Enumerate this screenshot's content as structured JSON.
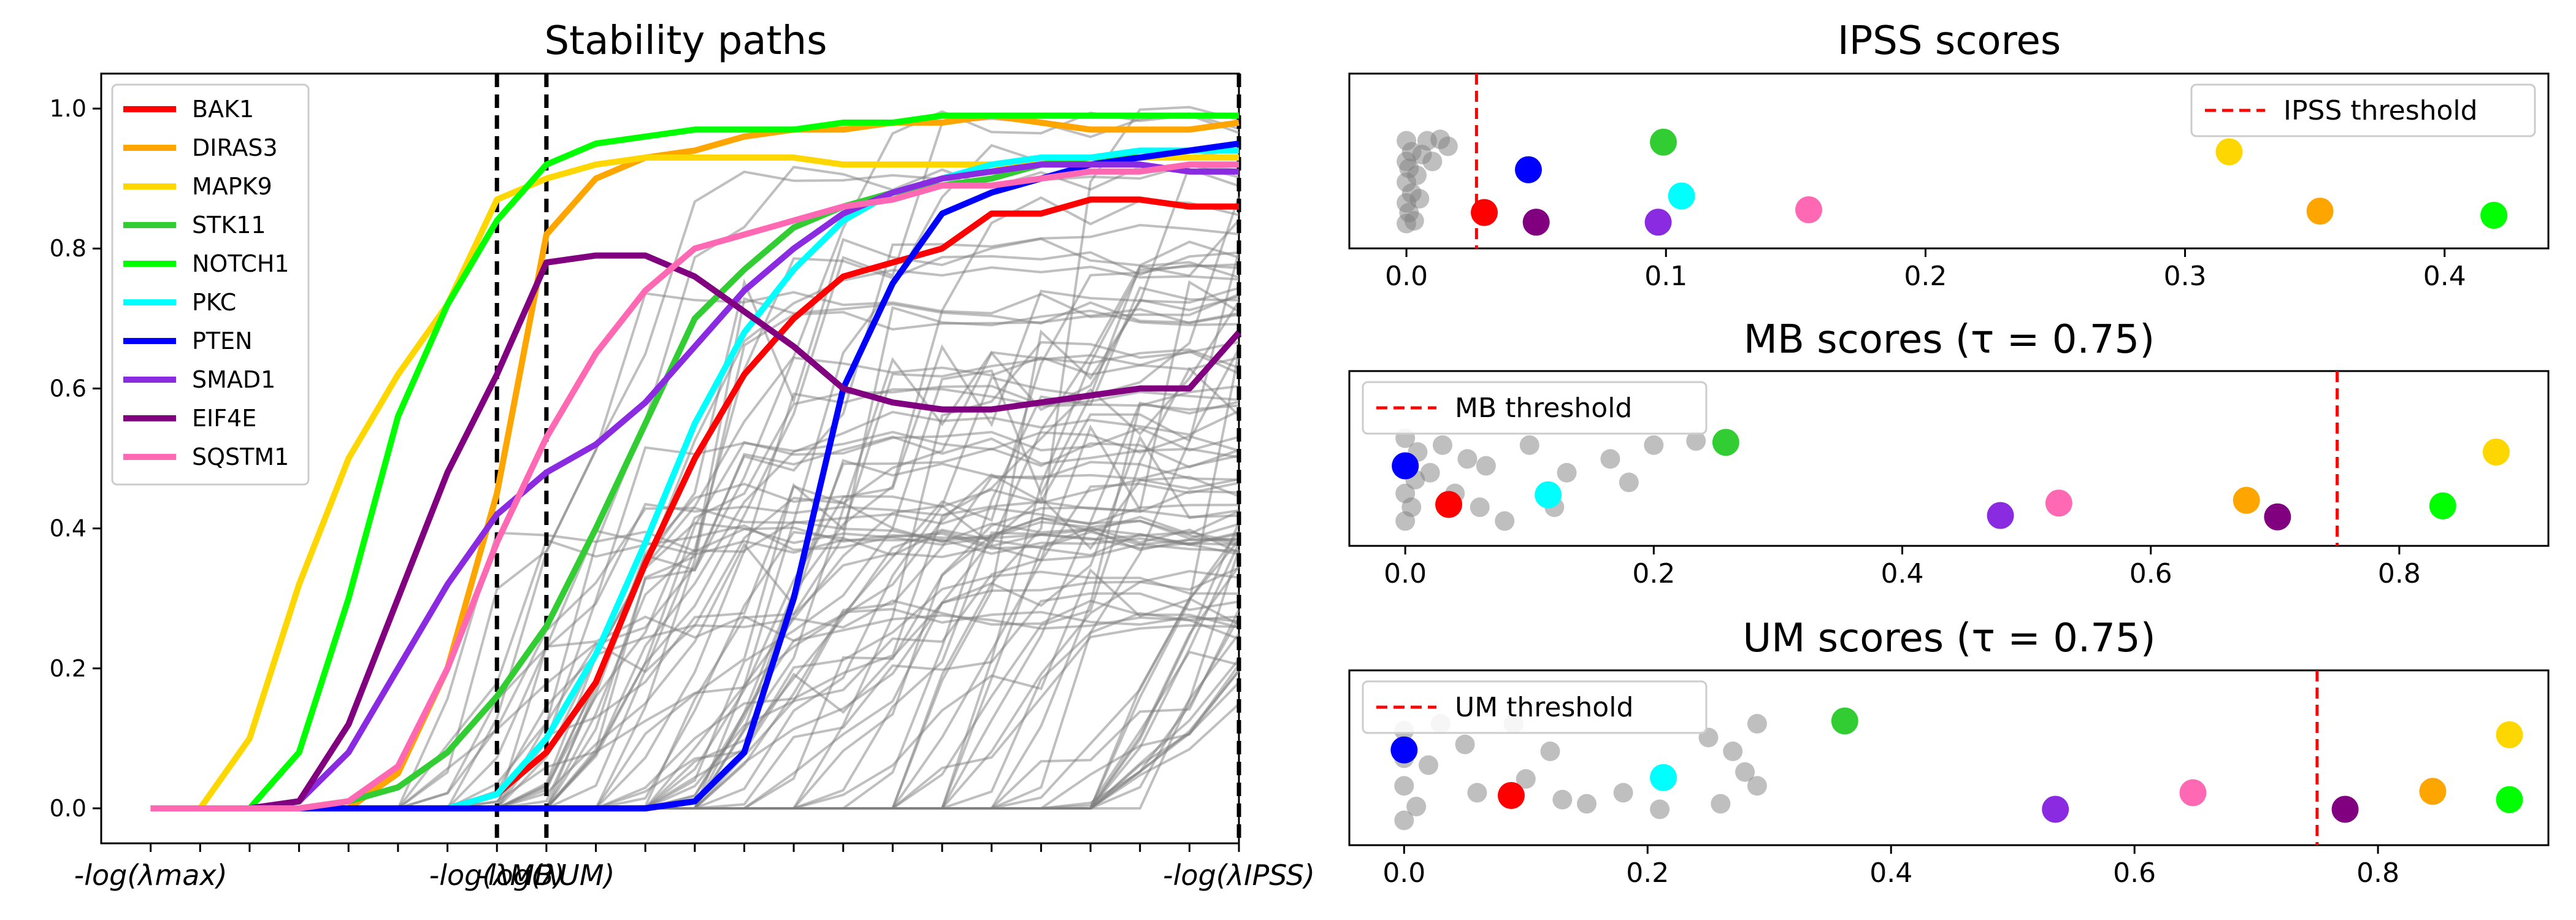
{
  "chart_data": [
    {
      "type": "line",
      "title": "Stability paths",
      "xlabel": "",
      "ylabel": "",
      "ylim": [
        -0.05,
        1.05
      ],
      "yticks": [
        0.0,
        0.2,
        0.4,
        0.6,
        0.8,
        1.0
      ],
      "ytick_labels": [
        "0.0",
        "0.2",
        "0.4",
        "0.6",
        "0.8",
        "1.0"
      ],
      "xlim": [
        -1,
        22
      ],
      "xtick_labels": [
        "-log(λmax)",
        "-log(λMB)",
        "-log(λUM)",
        "-log(λIPSS)"
      ],
      "xtick_positions": [
        0,
        7,
        8,
        22
      ],
      "vlines": [
        7,
        8,
        22
      ],
      "x": [
        0,
        1,
        2,
        3,
        4,
        5,
        6,
        7,
        8,
        9,
        10,
        11,
        12,
        13,
        14,
        15,
        16,
        17,
        18,
        19,
        20,
        21,
        22
      ],
      "series": [
        {
          "name": "BAK1",
          "color": "#ff0000",
          "values": [
            0,
            0,
            0,
            0,
            0,
            0,
            0,
            0.02,
            0.08,
            0.18,
            0.35,
            0.5,
            0.62,
            0.7,
            0.76,
            0.78,
            0.8,
            0.85,
            0.85,
            0.87,
            0.87,
            0.86,
            0.86
          ]
        },
        {
          "name": "DIRAS3",
          "color": "#ffa500",
          "values": [
            0,
            0,
            0,
            0,
            0,
            0.05,
            0.2,
            0.45,
            0.82,
            0.9,
            0.93,
            0.94,
            0.96,
            0.97,
            0.97,
            0.98,
            0.98,
            0.99,
            0.98,
            0.97,
            0.97,
            0.97,
            0.98
          ]
        },
        {
          "name": "MAPK9",
          "color": "#ffd700",
          "values": [
            0,
            0,
            0.1,
            0.32,
            0.5,
            0.62,
            0.72,
            0.87,
            0.9,
            0.92,
            0.93,
            0.93,
            0.93,
            0.93,
            0.92,
            0.92,
            0.92,
            0.92,
            0.92,
            0.93,
            0.93,
            0.93,
            0.93
          ]
        },
        {
          "name": "STK11",
          "color": "#32cd32",
          "values": [
            0,
            0,
            0,
            0,
            0.01,
            0.03,
            0.08,
            0.16,
            0.26,
            0.4,
            0.55,
            0.7,
            0.77,
            0.83,
            0.86,
            0.88,
            0.89,
            0.9,
            0.92,
            0.93,
            0.93,
            0.94,
            0.94
          ]
        },
        {
          "name": "NOTCH1",
          "color": "#00ff00",
          "values": [
            0,
            0,
            0,
            0.08,
            0.3,
            0.56,
            0.72,
            0.84,
            0.92,
            0.95,
            0.96,
            0.97,
            0.97,
            0.97,
            0.98,
            0.98,
            0.99,
            0.99,
            0.99,
            0.99,
            0.99,
            0.99,
            0.99
          ]
        },
        {
          "name": "PKC",
          "color": "#00ffff",
          "values": [
            0,
            0,
            0,
            0,
            0,
            0,
            0,
            0.02,
            0.1,
            0.22,
            0.38,
            0.55,
            0.68,
            0.77,
            0.84,
            0.88,
            0.9,
            0.92,
            0.93,
            0.93,
            0.94,
            0.94,
            0.94
          ]
        },
        {
          "name": "PTEN",
          "color": "#0000ff",
          "values": [
            0,
            0,
            0,
            0,
            0,
            0,
            0,
            0,
            0,
            0,
            0,
            0.01,
            0.08,
            0.3,
            0.6,
            0.75,
            0.85,
            0.88,
            0.9,
            0.92,
            0.93,
            0.94,
            0.95
          ]
        },
        {
          "name": "SMAD1",
          "color": "#8a2be2",
          "values": [
            0,
            0,
            0,
            0.01,
            0.08,
            0.2,
            0.32,
            0.42,
            0.48,
            0.52,
            0.58,
            0.66,
            0.74,
            0.8,
            0.85,
            0.88,
            0.9,
            0.91,
            0.92,
            0.92,
            0.92,
            0.91,
            0.91
          ]
        },
        {
          "name": "EIF4E",
          "color": "#800080",
          "values": [
            0,
            0,
            0,
            0.01,
            0.12,
            0.3,
            0.48,
            0.62,
            0.78,
            0.79,
            0.79,
            0.76,
            0.71,
            0.66,
            0.6,
            0.58,
            0.57,
            0.57,
            0.58,
            0.59,
            0.6,
            0.6,
            0.68
          ]
        },
        {
          "name": "SQSTM1",
          "color": "#ff69b4",
          "values": [
            0,
            0,
            0,
            0,
            0.01,
            0.06,
            0.2,
            0.38,
            0.53,
            0.65,
            0.74,
            0.8,
            0.82,
            0.84,
            0.86,
            0.87,
            0.89,
            0.89,
            0.9,
            0.91,
            0.91,
            0.92,
            0.92
          ]
        }
      ],
      "background_series_color": "#808080",
      "legend_position": "top-left"
    },
    {
      "type": "scatter",
      "title": "IPSS scores",
      "threshold_label": "IPSS threshold",
      "threshold": 0.027,
      "threshold_color": "#ff0000",
      "xlim": [
        -0.022,
        0.44
      ],
      "xticks": [
        0.0,
        0.1,
        0.2,
        0.3,
        0.4
      ],
      "xtick_labels": [
        "0.0",
        "0.1",
        "0.2",
        "0.3",
        "0.4"
      ],
      "legend_position": "top-right",
      "points": [
        {
          "name": "BAK1",
          "color": "#ff0000",
          "x": 0.03,
          "y": 0.18
        },
        {
          "name": "DIRAS3",
          "color": "#ffa500",
          "x": 0.352,
          "y": 0.19
        },
        {
          "name": "MAPK9",
          "color": "#ffd700",
          "x": 0.317,
          "y": 0.62
        },
        {
          "name": "STK11",
          "color": "#32cd32",
          "x": 0.099,
          "y": 0.69
        },
        {
          "name": "NOTCH1",
          "color": "#00ff00",
          "x": 0.419,
          "y": 0.16
        },
        {
          "name": "PKC",
          "color": "#00ffff",
          "x": 0.106,
          "y": 0.3
        },
        {
          "name": "PTEN",
          "color": "#0000ff",
          "x": 0.047,
          "y": 0.49
        },
        {
          "name": "SMAD1",
          "color": "#8a2be2",
          "x": 0.097,
          "y": 0.11
        },
        {
          "name": "EIF4E",
          "color": "#800080",
          "x": 0.05,
          "y": 0.11
        },
        {
          "name": "SQSTM1",
          "color": "#ff69b4",
          "x": 0.155,
          "y": 0.2
        }
      ],
      "background_points": [
        {
          "x": 0.0,
          "y": 0.1
        },
        {
          "x": 0.0,
          "y": 0.25
        },
        {
          "x": 0.0,
          "y": 0.4
        },
        {
          "x": 0.0,
          "y": 0.55
        },
        {
          "x": 0.0,
          "y": 0.7
        },
        {
          "x": 0.001,
          "y": 0.18
        },
        {
          "x": 0.001,
          "y": 0.5
        },
        {
          "x": 0.002,
          "y": 0.32
        },
        {
          "x": 0.002,
          "y": 0.62
        },
        {
          "x": 0.003,
          "y": 0.12
        },
        {
          "x": 0.004,
          "y": 0.45
        },
        {
          "x": 0.005,
          "y": 0.28
        },
        {
          "x": 0.006,
          "y": 0.6
        },
        {
          "x": 0.008,
          "y": 0.7
        },
        {
          "x": 0.01,
          "y": 0.55
        },
        {
          "x": 0.013,
          "y": 0.71
        },
        {
          "x": 0.016,
          "y": 0.66
        }
      ]
    },
    {
      "type": "scatter",
      "title": "MB scores (τ = 0.75)",
      "threshold_label": "MB threshold",
      "threshold": 0.75,
      "threshold_color": "#ff0000",
      "xlim": [
        -0.045,
        0.92
      ],
      "xticks": [
        0.0,
        0.2,
        0.4,
        0.6,
        0.8
      ],
      "xtick_labels": [
        "0.0",
        "0.2",
        "0.4",
        "0.6",
        "0.8"
      ],
      "legend_position": "top-left",
      "points": [
        {
          "name": "BAK1",
          "color": "#ff0000",
          "x": 0.035,
          "y": 0.22
        },
        {
          "name": "DIRAS3",
          "color": "#ffa500",
          "x": 0.677,
          "y": 0.25
        },
        {
          "name": "MAPK9",
          "color": "#ffd700",
          "x": 0.878,
          "y": 0.6
        },
        {
          "name": "STK11",
          "color": "#32cd32",
          "x": 0.258,
          "y": 0.67
        },
        {
          "name": "NOTCH1",
          "color": "#00ff00",
          "x": 0.835,
          "y": 0.21
        },
        {
          "name": "PKC",
          "color": "#00ffff",
          "x": 0.115,
          "y": 0.29
        },
        {
          "name": "PTEN",
          "color": "#0000ff",
          "x": 0.0,
          "y": 0.5
        },
        {
          "name": "SMAD1",
          "color": "#8a2be2",
          "x": 0.479,
          "y": 0.14
        },
        {
          "name": "EIF4E",
          "color": "#800080",
          "x": 0.702,
          "y": 0.13
        },
        {
          "name": "SQSTM1",
          "color": "#ff69b4",
          "x": 0.526,
          "y": 0.23
        }
      ],
      "background_points": [
        {
          "x": 0.0,
          "y": 0.1
        },
        {
          "x": 0.0,
          "y": 0.3
        },
        {
          "x": 0.0,
          "y": 0.7
        },
        {
          "x": 0.005,
          "y": 0.2
        },
        {
          "x": 0.008,
          "y": 0.4
        },
        {
          "x": 0.01,
          "y": 0.6
        },
        {
          "x": 0.02,
          "y": 0.45
        },
        {
          "x": 0.03,
          "y": 0.65
        },
        {
          "x": 0.04,
          "y": 0.3
        },
        {
          "x": 0.05,
          "y": 0.55
        },
        {
          "x": 0.06,
          "y": 0.2
        },
        {
          "x": 0.065,
          "y": 0.5
        },
        {
          "x": 0.08,
          "y": 0.1
        },
        {
          "x": 0.1,
          "y": 0.65
        },
        {
          "x": 0.12,
          "y": 0.2
        },
        {
          "x": 0.13,
          "y": 0.45
        },
        {
          "x": 0.165,
          "y": 0.55
        },
        {
          "x": 0.18,
          "y": 0.38
        },
        {
          "x": 0.2,
          "y": 0.65
        },
        {
          "x": 0.234,
          "y": 0.68
        }
      ]
    },
    {
      "type": "scatter",
      "title": "UM scores (τ = 0.75)",
      "threshold_label": "UM threshold",
      "threshold": 0.75,
      "threshold_color": "#ff0000",
      "xlim": [
        -0.045,
        0.94
      ],
      "xticks": [
        0.0,
        0.2,
        0.4,
        0.6,
        0.8
      ],
      "xtick_labels": [
        "0.0",
        "0.2",
        "0.4",
        "0.6",
        "0.8"
      ],
      "legend_position": "top-left",
      "points": [
        {
          "name": "BAK1",
          "color": "#ff0000",
          "x": 0.088,
          "y": 0.28
        },
        {
          "name": "DIRAS3",
          "color": "#ffa500",
          "x": 0.845,
          "y": 0.31
        },
        {
          "name": "MAPK9",
          "color": "#ffd700",
          "x": 0.908,
          "y": 0.72
        },
        {
          "name": "STK11",
          "color": "#32cd32",
          "x": 0.362,
          "y": 0.82
        },
        {
          "name": "NOTCH1",
          "color": "#00ff00",
          "x": 0.908,
          "y": 0.25
        },
        {
          "name": "PKC",
          "color": "#00ffff",
          "x": 0.213,
          "y": 0.41
        },
        {
          "name": "PTEN",
          "color": "#0000ff",
          "x": 0.0,
          "y": 0.61
        },
        {
          "name": "SMAD1",
          "color": "#8a2be2",
          "x": 0.535,
          "y": 0.18
        },
        {
          "name": "EIF4E",
          "color": "#800080",
          "x": 0.773,
          "y": 0.18
        },
        {
          "name": "SQSTM1",
          "color": "#ff69b4",
          "x": 0.648,
          "y": 0.3
        }
      ],
      "background_points": [
        {
          "x": 0.0,
          "y": 0.1
        },
        {
          "x": 0.0,
          "y": 0.35
        },
        {
          "x": 0.0,
          "y": 0.55
        },
        {
          "x": 0.0,
          "y": 0.75
        },
        {
          "x": 0.01,
          "y": 0.2
        },
        {
          "x": 0.02,
          "y": 0.5
        },
        {
          "x": 0.03,
          "y": 0.8
        },
        {
          "x": 0.05,
          "y": 0.65
        },
        {
          "x": 0.06,
          "y": 0.3
        },
        {
          "x": 0.09,
          "y": 0.8
        },
        {
          "x": 0.1,
          "y": 0.4
        },
        {
          "x": 0.12,
          "y": 0.6
        },
        {
          "x": 0.13,
          "y": 0.25
        },
        {
          "x": 0.15,
          "y": 0.22
        },
        {
          "x": 0.18,
          "y": 0.3
        },
        {
          "x": 0.21,
          "y": 0.18
        },
        {
          "x": 0.25,
          "y": 0.7
        },
        {
          "x": 0.26,
          "y": 0.22
        },
        {
          "x": 0.27,
          "y": 0.6
        },
        {
          "x": 0.28,
          "y": 0.45
        },
        {
          "x": 0.29,
          "y": 0.35
        },
        {
          "x": 0.29,
          "y": 0.8
        }
      ]
    }
  ]
}
